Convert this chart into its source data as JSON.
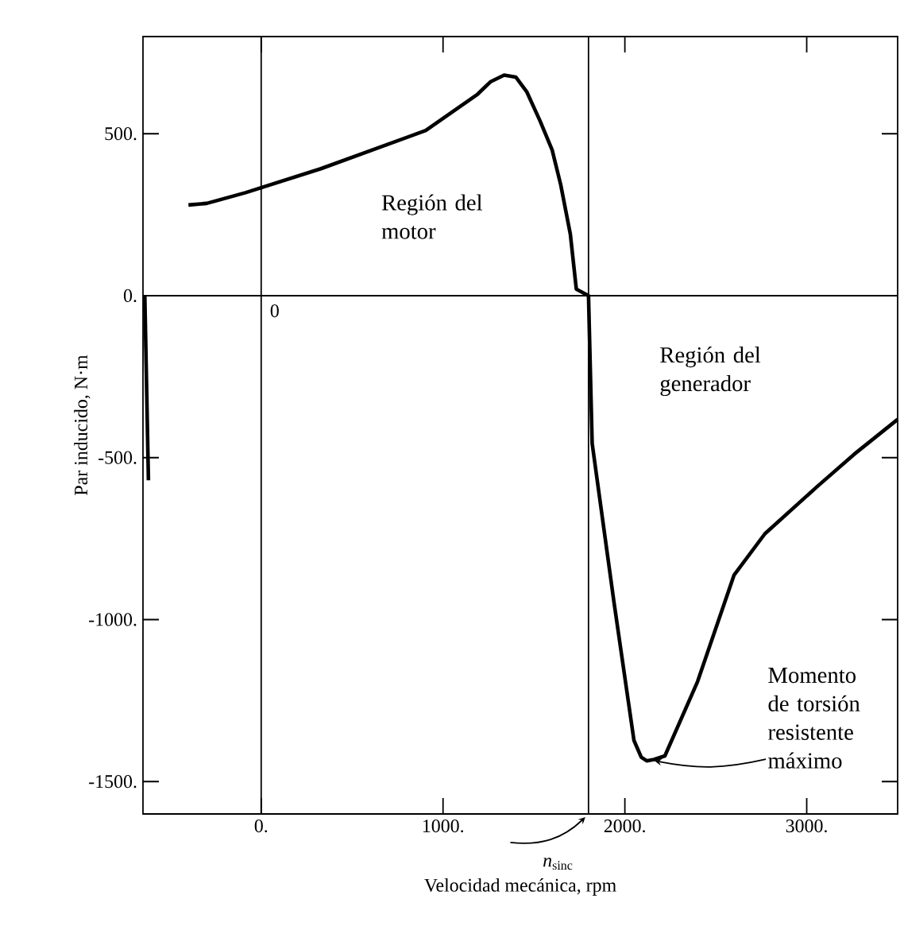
{
  "chart_data": {
    "type": "line",
    "xlabel": "Velocidad mecánica, rpm",
    "ylabel": "Par inducido, N·m",
    "xlim": [
      -650,
      3500
    ],
    "ylim": [
      -1600,
      800
    ],
    "xticks": [
      {
        "value": 0,
        "label": "0."
      },
      {
        "value": 1000,
        "label": "1000."
      },
      {
        "value": 2000,
        "label": "2000."
      },
      {
        "value": 3000,
        "label": "3000."
      }
    ],
    "yticks": [
      {
        "value": 500,
        "label": "500."
      },
      {
        "value": 0,
        "label": "0."
      },
      {
        "value": -500,
        "label": "-500."
      },
      {
        "value": -1000,
        "label": "-1000."
      },
      {
        "value": -1500,
        "label": "-1500."
      }
    ],
    "series": [
      {
        "color": "#000000",
        "x": [
          -400,
          -300,
          -86,
          328,
          905,
          1190,
          1260,
          1336,
          1400,
          1460,
          1534,
          1600,
          1647,
          1700,
          1733,
          1800,
          1820,
          1940,
          2050,
          2090,
          2120,
          2160,
          2220,
          2400,
          2600,
          2770,
          3060,
          3260,
          3500
        ],
        "values": [
          280,
          285,
          318,
          392,
          510,
          622,
          660,
          681,
          675,
          630,
          539,
          450,
          343,
          190,
          20,
          0,
          -456,
          -946,
          -1373,
          -1425,
          -1436,
          -1432,
          -1421,
          -1191,
          -863,
          -735,
          -588,
          -490,
          -382
        ]
      },
      {
        "color": "#000000",
        "x": [
          -640,
          -620
        ],
        "values": [
          0,
          -570
        ]
      }
    ],
    "ref_lines": [
      {
        "axis": "x",
        "value": 0,
        "color": "#000000"
      },
      {
        "axis": "y",
        "value": 0,
        "color": "#000000"
      },
      {
        "axis": "x",
        "value": 1800,
        "color": "#000000"
      }
    ],
    "annotations": [
      {
        "text": "0",
        "x": 0,
        "y": 0
      },
      "Región del motor",
      "Región del generador",
      {
        "text": "Momento de torsión resistente máximo",
        "x": 2120,
        "y": -1436
      },
      {
        "text": "*n*$_{sinc}$",
        "x": 1800,
        "y": -1600
      }
    ],
    "grid": false,
    "marker": "none",
    "line_style": "solid"
  }
}
